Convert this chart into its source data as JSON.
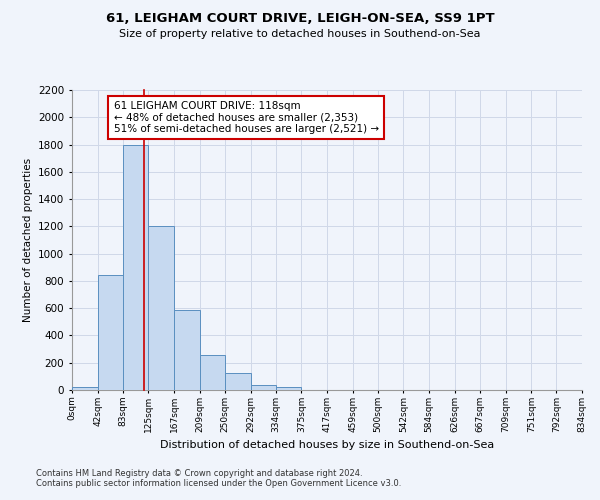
{
  "title": "61, LEIGHAM COURT DRIVE, LEIGH-ON-SEA, SS9 1PT",
  "subtitle": "Size of property relative to detached houses in Southend-on-Sea",
  "xlabel": "Distribution of detached houses by size in Southend-on-Sea",
  "ylabel": "Number of detached properties",
  "footnote1": "Contains HM Land Registry data © Crown copyright and database right 2024.",
  "footnote2": "Contains public sector information licensed under the Open Government Licence v3.0.",
  "bin_edges": [
    0,
    42,
    83,
    125,
    167,
    209,
    250,
    292,
    334,
    375,
    417,
    459,
    500,
    542,
    584,
    626,
    667,
    709,
    751,
    792,
    834
  ],
  "bin_labels": [
    "0sqm",
    "42sqm",
    "83sqm",
    "125sqm",
    "167sqm",
    "209sqm",
    "250sqm",
    "292sqm",
    "334sqm",
    "375sqm",
    "417sqm",
    "459sqm",
    "500sqm",
    "542sqm",
    "584sqm",
    "626sqm",
    "667sqm",
    "709sqm",
    "751sqm",
    "792sqm",
    "834sqm"
  ],
  "bar_heights": [
    25,
    840,
    1800,
    1200,
    590,
    255,
    125,
    40,
    25,
    0,
    0,
    0,
    0,
    0,
    0,
    0,
    0,
    0,
    0,
    0
  ],
  "bar_color": "#c6d9f0",
  "bar_edge_color": "#5a8fc0",
  "property_line_x": 118,
  "property_line_color": "#cc0000",
  "annotation_text": "61 LEIGHAM COURT DRIVE: 118sqm\n← 48% of detached houses are smaller (2,353)\n51% of semi-detached houses are larger (2,521) →",
  "annotation_box_color": "#ffffff",
  "annotation_box_edge": "#cc0000",
  "ylim": [
    0,
    2200
  ],
  "yticks": [
    0,
    200,
    400,
    600,
    800,
    1000,
    1200,
    1400,
    1600,
    1800,
    2000,
    2200
  ],
  "grid_color": "#d0d8e8",
  "background_color": "#f0f4fb"
}
